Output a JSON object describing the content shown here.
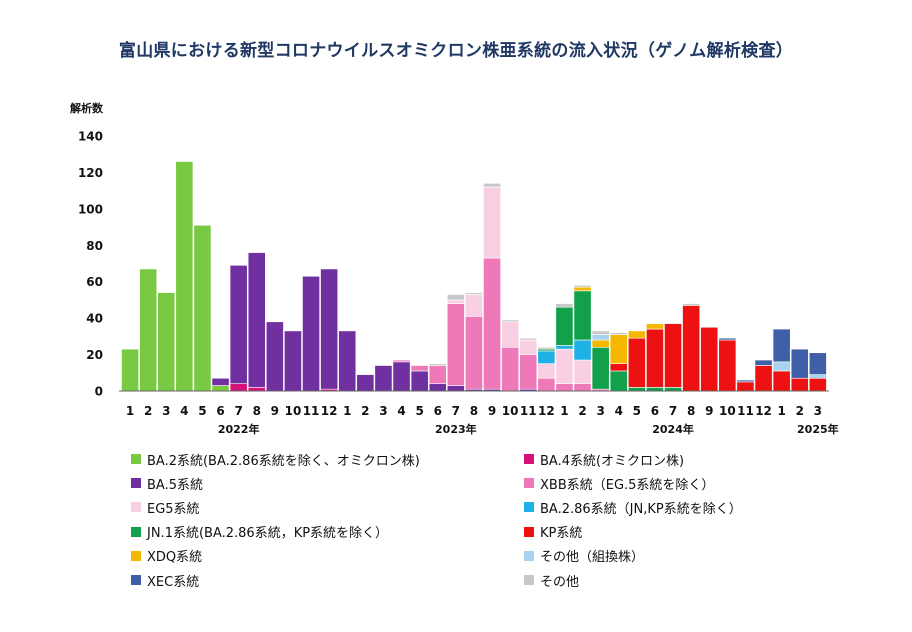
{
  "title": "富山県における新型コロナウイルスオミクロン株亜系統の流入状況（ゲノム解析検査）",
  "chart_data": {
    "type": "bar",
    "stacked": true,
    "ylabel": "解析数",
    "ylim": [
      0,
      140
    ],
    "yticks": [
      0,
      20,
      40,
      60,
      80,
      100,
      120,
      140
    ],
    "grid": false,
    "legend_position": "bottom",
    "categories": [
      "1",
      "2",
      "3",
      "4",
      "5",
      "6",
      "7",
      "8",
      "9",
      "10",
      "11",
      "12",
      "1",
      "2",
      "3",
      "4",
      "5",
      "6",
      "7",
      "8",
      "9",
      "10",
      "11",
      "12",
      "1",
      "2",
      "3",
      "4",
      "5",
      "6",
      "7",
      "8",
      "9",
      "10",
      "11",
      "12",
      "1",
      "2",
      "3"
    ],
    "years": [
      {
        "label": "2022年",
        "index": 6
      },
      {
        "label": "2023年",
        "index": 18
      },
      {
        "label": "2024年",
        "index": 30
      },
      {
        "label": "2025年",
        "index": 38
      }
    ],
    "series": [
      {
        "name": "BA.2系統(BA.2.86系統を除く、オミクロン株)",
        "color": "#7ac943",
        "values": [
          23,
          67,
          54,
          126,
          91,
          3,
          0,
          0,
          0,
          0,
          0,
          0,
          0,
          0,
          0,
          0,
          0,
          0,
          0,
          0,
          0,
          0,
          0,
          0,
          0,
          0,
          0,
          0,
          0,
          0,
          0,
          0,
          0,
          0,
          0,
          0,
          0,
          0,
          0
        ]
      },
      {
        "name": "BA.4系統(オミクロン株)",
        "color": "#d6127a",
        "values": [
          0,
          0,
          0,
          0,
          0,
          0,
          4,
          2,
          0,
          0,
          0,
          1,
          0,
          0,
          0,
          0,
          0,
          0,
          0,
          0,
          0,
          0,
          0,
          0,
          0,
          0,
          0,
          0,
          0,
          0,
          0,
          0,
          0,
          0,
          0,
          0,
          0,
          0,
          0
        ]
      },
      {
        "name": "BA.5系統",
        "color": "#7030a0",
        "values": [
          0,
          0,
          0,
          0,
          0,
          4,
          65,
          74,
          38,
          33,
          63,
          66,
          33,
          9,
          14,
          16,
          11,
          4,
          3,
          1,
          1,
          0,
          1,
          0,
          0,
          0,
          0,
          0,
          0,
          0,
          0,
          0,
          0,
          0,
          0,
          0,
          0,
          0,
          0
        ]
      },
      {
        "name": "XBB系統（EG.5系統を除く）",
        "color": "#ee78b8",
        "values": [
          0,
          0,
          0,
          0,
          0,
          0,
          0,
          0,
          0,
          0,
          0,
          0,
          0,
          0,
          0,
          1,
          3,
          10,
          45,
          40,
          72,
          24,
          19,
          7,
          4,
          4,
          1,
          0,
          0,
          0,
          0,
          0,
          0,
          0,
          0,
          0,
          0,
          0,
          0
        ]
      },
      {
        "name": "EG5系統",
        "color": "#f9cfe3",
        "values": [
          0,
          0,
          0,
          0,
          0,
          0,
          0,
          0,
          0,
          0,
          0,
          0,
          0,
          0,
          0,
          0,
          0,
          0,
          2,
          12,
          39,
          14,
          8,
          8,
          19,
          13,
          0,
          0,
          0,
          0,
          0,
          0,
          0,
          0,
          0,
          0,
          0,
          0,
          0
        ]
      },
      {
        "name": "BA.2.86系統（JN,KP系統を除く）",
        "color": "#1fb0e6",
        "values": [
          0,
          0,
          0,
          0,
          0,
          0,
          0,
          0,
          0,
          0,
          0,
          0,
          0,
          0,
          0,
          0,
          0,
          0,
          0,
          0,
          0,
          0,
          0,
          7,
          2,
          11,
          0,
          0,
          0,
          0,
          0,
          0,
          0,
          0,
          0,
          0,
          0,
          0,
          0
        ]
      },
      {
        "name": "JN.1系統(BA.2.86系統，KP系統を除く）",
        "color": "#12a04a",
        "values": [
          0,
          0,
          0,
          0,
          0,
          0,
          0,
          0,
          0,
          0,
          0,
          0,
          0,
          0,
          0,
          0,
          0,
          0,
          0,
          0,
          0,
          0,
          0,
          1,
          21,
          27,
          23,
          11,
          2,
          2,
          2,
          0,
          0,
          0,
          0,
          0,
          0,
          0,
          0
        ]
      },
      {
        "name": "KP系統",
        "color": "#ee1111",
        "values": [
          0,
          0,
          0,
          0,
          0,
          0,
          0,
          0,
          0,
          0,
          0,
          0,
          0,
          0,
          0,
          0,
          0,
          0,
          0,
          0,
          0,
          0,
          0,
          0,
          0,
          0,
          0,
          4,
          27,
          32,
          35,
          47,
          35,
          28,
          5,
          14,
          11,
          7,
          7
        ]
      },
      {
        "name": "XDQ系統",
        "color": "#f5b800",
        "values": [
          0,
          0,
          0,
          0,
          0,
          0,
          0,
          0,
          0,
          0,
          0,
          0,
          0,
          0,
          0,
          0,
          0,
          0,
          0,
          0,
          0,
          0,
          0,
          0,
          0,
          2,
          4,
          16,
          4,
          3,
          0,
          0,
          0,
          0,
          0,
          0,
          0,
          0,
          0
        ]
      },
      {
        "name": "その他（組換株）",
        "color": "#a6d3f0",
        "values": [
          0,
          0,
          0,
          0,
          0,
          0,
          0,
          0,
          0,
          0,
          0,
          0,
          0,
          0,
          0,
          0,
          0,
          0,
          0,
          0,
          0,
          0,
          0,
          0,
          0,
          0,
          3,
          0,
          0,
          0,
          0,
          0,
          0,
          0,
          0,
          0,
          5,
          0,
          2
        ]
      },
      {
        "name": "XEC系統",
        "color": "#3f5fa8",
        "values": [
          0,
          0,
          0,
          0,
          0,
          0,
          0,
          0,
          0,
          0,
          0,
          0,
          0,
          0,
          0,
          0,
          0,
          0,
          0,
          0,
          0,
          0,
          0,
          0,
          0,
          0,
          0,
          0,
          0,
          0,
          0,
          0,
          0,
          1,
          1,
          3,
          18,
          16,
          12
        ]
      },
      {
        "name": "その他",
        "color": "#c8c8c8",
        "values": [
          0,
          0,
          0,
          0,
          0,
          0,
          0,
          0,
          0,
          0,
          0,
          0,
          0,
          0,
          0,
          0,
          0,
          1,
          3,
          1,
          2,
          1,
          1,
          1,
          2,
          1,
          2,
          1,
          0,
          0,
          0,
          1,
          0,
          0,
          0,
          0,
          0,
          0,
          0
        ]
      }
    ]
  }
}
